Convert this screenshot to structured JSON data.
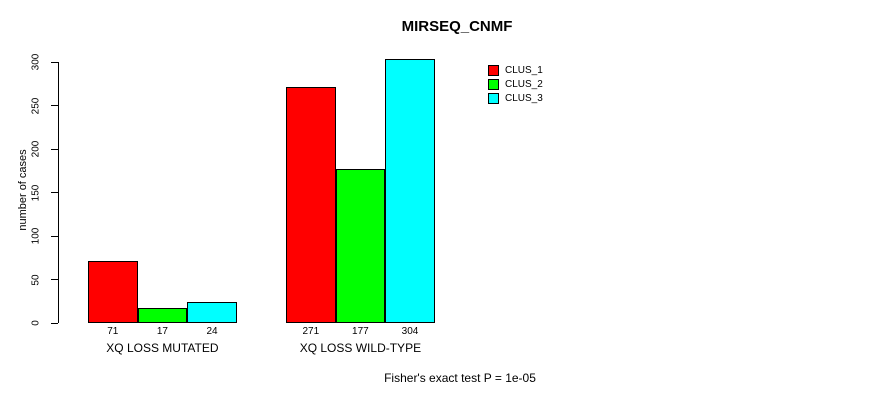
{
  "title": "MIRSEQ_CNMF",
  "caption": "Fisher's exact test P = 1e-05",
  "chart_data": {
    "type": "bar",
    "title": "MIRSEQ_CNMF",
    "xlabel": "",
    "ylabel": "number of cases",
    "categories": [
      "XQ LOSS MUTATED",
      "XQ LOSS WILD-TYPE"
    ],
    "series": [
      {
        "name": "CLUS_1",
        "color": "#ff0000",
        "values": [
          71,
          271
        ]
      },
      {
        "name": "CLUS_2",
        "color": "#00ff00",
        "values": [
          17,
          177
        ]
      },
      {
        "name": "CLUS_3",
        "color": "#00ffff",
        "values": [
          24,
          304
        ]
      }
    ],
    "bar_value_labels": [
      [
        "71",
        "17",
        "24"
      ],
      [
        "271",
        "177",
        "304"
      ]
    ],
    "yticks": [
      0,
      50,
      100,
      150,
      200,
      250,
      300
    ],
    "ylim": [
      0,
      300
    ],
    "grid": false,
    "legend_position": "top-right",
    "legend_entries": [
      "CLUS_1",
      "CLUS_2",
      "CLUS_3"
    ],
    "annotation": "Fisher's exact test P = 1e-05",
    "background_color": "#ffffff",
    "bar_border_color": "#000000"
  }
}
